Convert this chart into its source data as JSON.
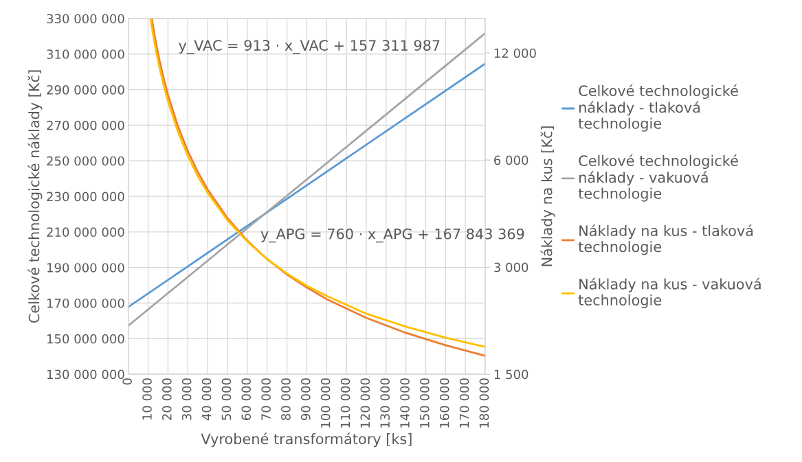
{
  "chart_data": {
    "type": "line",
    "xlabel": "Vyrobené transformátory [ks]",
    "ylabel": "Celkové technologické náklady [Kč]",
    "y2label": "Náklady na kus [Kč]",
    "annotations": [
      "y_VAC = 913 · x_VAC + 157 311 987",
      "y_APG = 760 · x_APG + 167 843 369"
    ],
    "series": [
      {
        "name": "Celkové technologické\nnáklady - tlaková\ntechnologie",
        "color": "#5b9bd5",
        "x": [
          0,
          180000
        ],
        "values": [
          167800000,
          304600000
        ]
      },
      {
        "name": "Celkové technologické\nnáklady - vakuová\ntechnologie",
        "color": "#a5a5a5",
        "x": [
          0,
          180000
        ],
        "values": [
          157300000,
          321700000
        ]
      },
      {
        "name": "Náklady na kus - tlaková\ntechnologie",
        "color": "#ed7d31",
        "axis": "y2",
        "x": [
          11800,
          12000,
          14000,
          16000,
          18000,
          20000,
          25000,
          30000,
          35000,
          40000,
          50000,
          60000,
          70000,
          80000,
          90000,
          100000,
          120000,
          140000,
          160000,
          180000
        ],
        "values": [
          14980,
          14750,
          12750,
          11250,
          10090,
          9150,
          7470,
          6360,
          5560,
          4960,
          4120,
          3560,
          3160,
          2860,
          2630,
          2440,
          2160,
          1960,
          1810,
          1690
        ]
      },
      {
        "name": "Náklady na kus - vakuová\ntechnologie",
        "color": "#ffc000",
        "axis": "y2",
        "x": [
          11200,
          12000,
          14000,
          16000,
          18000,
          20000,
          25000,
          30000,
          35000,
          40000,
          50000,
          60000,
          70000,
          80000,
          90000,
          100000,
          120000,
          140000,
          160000,
          180000
        ],
        "values": [
          14960,
          14020,
          12150,
          10750,
          9650,
          8780,
          7210,
          6160,
          5410,
          4850,
          4060,
          3540,
          3160,
          2880,
          2660,
          2490,
          2220,
          2040,
          1900,
          1790
        ]
      }
    ],
    "xlim": [
      0,
      180000
    ],
    "xticks": [
      0,
      {
        "value": 10000,
        "label": "10 000"
      },
      {
        "value": 20000,
        "label": "20 000"
      },
      {
        "value": 30000,
        "label": "30 000"
      },
      {
        "value": 40000,
        "label": "40 000"
      },
      {
        "value": 50000,
        "label": "50 000"
      },
      {
        "value": 60000,
        "label": "60 000"
      },
      {
        "value": 70000,
        "label": "70 000"
      },
      {
        "value": 80000,
        "label": "80 000"
      },
      {
        "value": 90000,
        "label": "90 000"
      },
      {
        "value": 100000,
        "label": "100 000"
      },
      {
        "value": 110000,
        "label": "110 000"
      },
      {
        "value": 120000,
        "label": "120 000"
      },
      {
        "value": 130000,
        "label": "130 000"
      },
      {
        "value": 140000,
        "label": "140 000"
      },
      {
        "value": 150000,
        "label": "150 000"
      },
      {
        "value": 160000,
        "label": "160 000"
      },
      {
        "value": 170000,
        "label": "170 000"
      },
      {
        "value": 180000,
        "label": "180 000"
      }
    ],
    "ylim": [
      130000000,
      330000000
    ],
    "yticks": [
      {
        "value": 130000000,
        "label": "130 000 000"
      },
      {
        "value": 150000000,
        "label": "150 000 000"
      },
      {
        "value": 170000000,
        "label": "170 000 000"
      },
      {
        "value": 190000000,
        "label": "190 000 000"
      },
      {
        "value": 210000000,
        "label": "210 000 000"
      },
      {
        "value": 230000000,
        "label": "230 000 000"
      },
      {
        "value": 250000000,
        "label": "250 000 000"
      },
      {
        "value": 270000000,
        "label": "270 000 000"
      },
      {
        "value": 290000000,
        "label": "290 000 000"
      },
      {
        "value": 310000000,
        "label": "310 000 000"
      },
      {
        "value": 330000000,
        "label": "330 000 000"
      }
    ],
    "y2lim": [
      1500,
      15000
    ],
    "y2ticks": [
      {
        "value": 1500,
        "label": "1 500"
      },
      {
        "value": 3000,
        "label": "3 000"
      },
      {
        "value": 6000,
        "label": "6 000"
      },
      {
        "value": 12000,
        "label": "12 000"
      }
    ],
    "log": "y2",
    "grid": true,
    "legend": "right",
    "marker": "none",
    "line_style": "solid"
  }
}
